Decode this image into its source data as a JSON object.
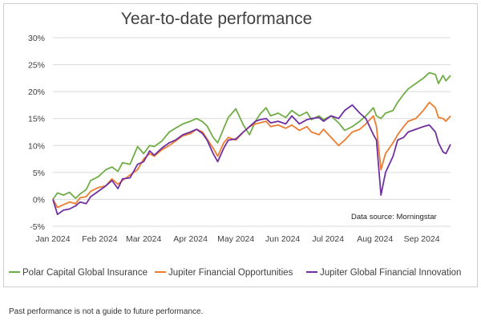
{
  "footnote": "Past performance is not a guide to future performance.",
  "chart_data": {
    "type": "line",
    "title": "Year-to-date performance",
    "xlabel": "",
    "ylabel": "",
    "x_ticks": [
      "Jan 2024",
      "Feb 2024",
      "Mar 2024",
      "Apr 2024",
      "May 2024",
      "Jun 2024",
      "Jul 2024",
      "Aug 2024",
      "Sep 2024"
    ],
    "y_ticks": [
      "30%",
      "25%",
      "20%",
      "15%",
      "10%",
      "5%",
      "0%",
      "-5%"
    ],
    "ylim": [
      -5,
      30
    ],
    "x_range": [
      "2024-01-01",
      "2024-09-20"
    ],
    "annotation": "Data source: Morningstar",
    "grid": true,
    "legend_position": "bottom",
    "series": [
      {
        "name": "Polar Capital Global Insurance",
        "color": "#70ad47",
        "points": [
          [
            "2024-01-01",
            0.0
          ],
          [
            "2024-01-04",
            1.2
          ],
          [
            "2024-01-08",
            0.8
          ],
          [
            "2024-01-12",
            1.3
          ],
          [
            "2024-01-16",
            0.2
          ],
          [
            "2024-01-19",
            1.0
          ],
          [
            "2024-01-23",
            1.8
          ],
          [
            "2024-01-26",
            3.5
          ],
          [
            "2024-01-31",
            4.2
          ],
          [
            "2024-02-05",
            5.5
          ],
          [
            "2024-02-09",
            6.0
          ],
          [
            "2024-02-13",
            5.2
          ],
          [
            "2024-02-16",
            6.8
          ],
          [
            "2024-02-21",
            6.5
          ],
          [
            "2024-02-26",
            9.8
          ],
          [
            "2024-03-01",
            8.5
          ],
          [
            "2024-03-05",
            10.0
          ],
          [
            "2024-03-08",
            9.8
          ],
          [
            "2024-03-13",
            10.8
          ],
          [
            "2024-03-18",
            12.5
          ],
          [
            "2024-03-22",
            13.2
          ],
          [
            "2024-03-27",
            14.0
          ],
          [
            "2024-04-01",
            14.5
          ],
          [
            "2024-04-05",
            15.0
          ],
          [
            "2024-04-09",
            14.4
          ],
          [
            "2024-04-12",
            13.6
          ],
          [
            "2024-04-16",
            11.5
          ],
          [
            "2024-04-19",
            10.5
          ],
          [
            "2024-04-23",
            13.2
          ],
          [
            "2024-04-26",
            15.2
          ],
          [
            "2024-05-01",
            16.8
          ],
          [
            "2024-05-06",
            13.8
          ],
          [
            "2024-05-10",
            12.0
          ],
          [
            "2024-05-14",
            14.5
          ],
          [
            "2024-05-17",
            15.8
          ],
          [
            "2024-05-21",
            17.0
          ],
          [
            "2024-05-24",
            15.5
          ],
          [
            "2024-05-29",
            16.0
          ],
          [
            "2024-06-03",
            15.2
          ],
          [
            "2024-06-07",
            16.5
          ],
          [
            "2024-06-12",
            15.5
          ],
          [
            "2024-06-17",
            16.2
          ],
          [
            "2024-06-20",
            14.8
          ],
          [
            "2024-06-25",
            15.5
          ],
          [
            "2024-06-28",
            14.8
          ],
          [
            "2024-07-03",
            15.5
          ],
          [
            "2024-07-08",
            14.2
          ],
          [
            "2024-07-12",
            12.8
          ],
          [
            "2024-07-17",
            13.5
          ],
          [
            "2024-07-22",
            14.5
          ],
          [
            "2024-07-26",
            15.5
          ],
          [
            "2024-07-31",
            17.0
          ],
          [
            "2024-08-02",
            15.5
          ],
          [
            "2024-08-05",
            15.0
          ],
          [
            "2024-08-08",
            16.0
          ],
          [
            "2024-08-13",
            16.5
          ],
          [
            "2024-08-16",
            18.0
          ],
          [
            "2024-08-20",
            19.5
          ],
          [
            "2024-08-23",
            20.5
          ],
          [
            "2024-08-28",
            21.5
          ],
          [
            "2024-09-02",
            22.5
          ],
          [
            "2024-09-06",
            23.5
          ],
          [
            "2024-09-10",
            23.2
          ],
          [
            "2024-09-12",
            21.5
          ],
          [
            "2024-09-15",
            23.0
          ],
          [
            "2024-09-17",
            22.0
          ],
          [
            "2024-09-20",
            23.0
          ]
        ]
      },
      {
        "name": "Jupiter Financial Opportunities",
        "color": "#ed7d31",
        "points": [
          [
            "2024-01-01",
            0.0
          ],
          [
            "2024-01-04",
            -1.5
          ],
          [
            "2024-01-08",
            -1.0
          ],
          [
            "2024-01-12",
            -0.5
          ],
          [
            "2024-01-16",
            -0.8
          ],
          [
            "2024-01-19",
            0.3
          ],
          [
            "2024-01-23",
            0.5
          ],
          [
            "2024-01-26",
            1.5
          ],
          [
            "2024-01-31",
            2.2
          ],
          [
            "2024-02-05",
            2.5
          ],
          [
            "2024-02-09",
            3.8
          ],
          [
            "2024-02-13",
            2.8
          ],
          [
            "2024-02-16",
            3.5
          ],
          [
            "2024-02-21",
            4.5
          ],
          [
            "2024-02-26",
            5.5
          ],
          [
            "2024-03-01",
            7.5
          ],
          [
            "2024-03-05",
            8.5
          ],
          [
            "2024-03-08",
            8.0
          ],
          [
            "2024-03-13",
            9.2
          ],
          [
            "2024-03-18",
            10.0
          ],
          [
            "2024-03-22",
            10.8
          ],
          [
            "2024-03-27",
            11.8
          ],
          [
            "2024-04-01",
            12.2
          ],
          [
            "2024-04-05",
            13.0
          ],
          [
            "2024-04-09",
            12.5
          ],
          [
            "2024-04-12",
            11.2
          ],
          [
            "2024-04-16",
            9.5
          ],
          [
            "2024-04-19",
            8.0
          ],
          [
            "2024-04-23",
            10.5
          ],
          [
            "2024-04-26",
            11.5
          ],
          [
            "2024-05-01",
            11.0
          ],
          [
            "2024-05-06",
            12.5
          ],
          [
            "2024-05-10",
            13.5
          ],
          [
            "2024-05-14",
            14.0
          ],
          [
            "2024-05-17",
            14.2
          ],
          [
            "2024-05-21",
            14.5
          ],
          [
            "2024-05-24",
            13.5
          ],
          [
            "2024-05-29",
            13.8
          ],
          [
            "2024-06-03",
            13.2
          ],
          [
            "2024-06-07",
            13.8
          ],
          [
            "2024-06-12",
            12.8
          ],
          [
            "2024-06-17",
            13.5
          ],
          [
            "2024-06-20",
            12.5
          ],
          [
            "2024-06-25",
            12.0
          ],
          [
            "2024-06-28",
            13.0
          ],
          [
            "2024-07-03",
            11.5
          ],
          [
            "2024-07-08",
            10.0
          ],
          [
            "2024-07-12",
            11.0
          ],
          [
            "2024-07-17",
            12.5
          ],
          [
            "2024-07-22",
            13.0
          ],
          [
            "2024-07-26",
            14.0
          ],
          [
            "2024-07-31",
            15.5
          ],
          [
            "2024-08-02",
            13.5
          ],
          [
            "2024-08-05",
            5.5
          ],
          [
            "2024-08-08",
            8.5
          ],
          [
            "2024-08-13",
            10.5
          ],
          [
            "2024-08-16",
            12.0
          ],
          [
            "2024-08-20",
            13.5
          ],
          [
            "2024-08-23",
            14.5
          ],
          [
            "2024-08-28",
            15.0
          ],
          [
            "2024-09-02",
            16.5
          ],
          [
            "2024-09-06",
            18.0
          ],
          [
            "2024-09-10",
            17.0
          ],
          [
            "2024-09-12",
            15.2
          ],
          [
            "2024-09-15",
            15.0
          ],
          [
            "2024-09-17",
            14.5
          ],
          [
            "2024-09-20",
            15.5
          ]
        ]
      },
      {
        "name": "Jupiter Global Financial Innovation",
        "color": "#7030a0",
        "points": [
          [
            "2024-01-01",
            0.0
          ],
          [
            "2024-01-04",
            -2.8
          ],
          [
            "2024-01-08",
            -2.0
          ],
          [
            "2024-01-12",
            -1.8
          ],
          [
            "2024-01-16",
            -1.2
          ],
          [
            "2024-01-19",
            -0.5
          ],
          [
            "2024-01-23",
            -0.8
          ],
          [
            "2024-01-26",
            0.5
          ],
          [
            "2024-01-31",
            1.5
          ],
          [
            "2024-02-05",
            2.5
          ],
          [
            "2024-02-09",
            3.5
          ],
          [
            "2024-02-13",
            2.0
          ],
          [
            "2024-02-16",
            3.8
          ],
          [
            "2024-02-21",
            4.0
          ],
          [
            "2024-02-26",
            6.5
          ],
          [
            "2024-03-01",
            7.0
          ],
          [
            "2024-03-05",
            9.0
          ],
          [
            "2024-03-08",
            8.2
          ],
          [
            "2024-03-13",
            9.5
          ],
          [
            "2024-03-18",
            10.5
          ],
          [
            "2024-03-22",
            11.0
          ],
          [
            "2024-03-27",
            12.0
          ],
          [
            "2024-04-01",
            12.5
          ],
          [
            "2024-04-05",
            13.0
          ],
          [
            "2024-04-09",
            12.2
          ],
          [
            "2024-04-12",
            11.0
          ],
          [
            "2024-04-16",
            8.5
          ],
          [
            "2024-04-19",
            7.0
          ],
          [
            "2024-04-23",
            9.5
          ],
          [
            "2024-04-26",
            11.0
          ],
          [
            "2024-05-01",
            11.2
          ],
          [
            "2024-05-06",
            12.5
          ],
          [
            "2024-05-10",
            13.5
          ],
          [
            "2024-05-14",
            14.5
          ],
          [
            "2024-05-17",
            14.8
          ],
          [
            "2024-05-21",
            15.0
          ],
          [
            "2024-05-24",
            14.2
          ],
          [
            "2024-05-29",
            14.5
          ],
          [
            "2024-06-03",
            14.0
          ],
          [
            "2024-06-07",
            15.5
          ],
          [
            "2024-06-12",
            14.0
          ],
          [
            "2024-06-17",
            14.8
          ],
          [
            "2024-06-20",
            15.0
          ],
          [
            "2024-06-25",
            15.2
          ],
          [
            "2024-06-28",
            14.5
          ],
          [
            "2024-07-03",
            15.5
          ],
          [
            "2024-07-08",
            15.0
          ],
          [
            "2024-07-12",
            16.5
          ],
          [
            "2024-07-17",
            17.5
          ],
          [
            "2024-07-22",
            16.0
          ],
          [
            "2024-07-26",
            15.0
          ],
          [
            "2024-07-31",
            12.0
          ],
          [
            "2024-08-02",
            11.0
          ],
          [
            "2024-08-05",
            0.8
          ],
          [
            "2024-08-08",
            5.0
          ],
          [
            "2024-08-13",
            8.0
          ],
          [
            "2024-08-16",
            11.0
          ],
          [
            "2024-08-20",
            11.5
          ],
          [
            "2024-08-23",
            12.5
          ],
          [
            "2024-08-28",
            13.0
          ],
          [
            "2024-09-02",
            13.5
          ],
          [
            "2024-09-06",
            13.8
          ],
          [
            "2024-09-10",
            12.5
          ],
          [
            "2024-09-12",
            10.5
          ],
          [
            "2024-09-15",
            8.8
          ],
          [
            "2024-09-17",
            8.5
          ],
          [
            "2024-09-20",
            10.2
          ]
        ]
      }
    ]
  }
}
